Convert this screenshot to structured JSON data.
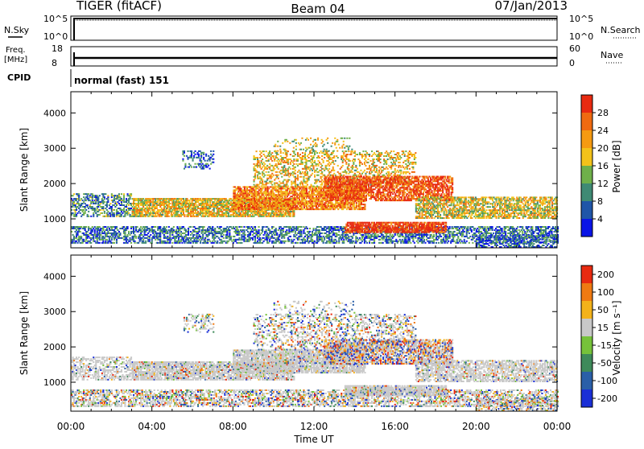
{
  "header": {
    "title": "TIGER (fitACF)",
    "beam": "Beam 04",
    "date": "07/Jan/2013"
  },
  "status_panels": {
    "nsky_label": "N.Sky",
    "nsearch_label": "N.Search",
    "freq_label_line1": "Freq.",
    "freq_label_line2": "[MHz]",
    "nave_label": "Nave",
    "cpid_label": "CPID",
    "cpid_text": "normal (fast) 151",
    "noise_ticks_left": [
      "10^5",
      "10^0"
    ],
    "noise_ticks_right": [
      "10^5",
      "10^0"
    ],
    "freq_ticks_left": [
      "18",
      "8"
    ],
    "nave_ticks_right": [
      "60",
      "0"
    ]
  },
  "chart_data": [
    {
      "type": "heatmap",
      "panel": "power",
      "ylabel": "Slant Range [km]",
      "xlabel": "Time UT",
      "x_ticks": [
        "00:00",
        "04:00",
        "08:00",
        "12:00",
        "16:00",
        "20:00",
        "00:00"
      ],
      "y_ticks": [
        1000,
        2000,
        3000,
        4000
      ],
      "ylim": [
        180,
        4600
      ],
      "xlim_hours": [
        0,
        24
      ],
      "colorbar_label": "Power [dB]",
      "colorbar_ticks": [
        "4",
        "8",
        "12",
        "16",
        "20",
        "24",
        "28"
      ],
      "colorscale": [
        "#0a14e6",
        "#1f55a8",
        "#3f8a74",
        "#6fb04a",
        "#f3c21a",
        "#f59a12",
        "#ef6a10",
        "#e82a10"
      ]
    },
    {
      "type": "heatmap",
      "panel": "velocity",
      "ylabel": "Slant Range [km]",
      "xlabel": "Time UT",
      "x_ticks": [
        "00:00",
        "04:00",
        "08:00",
        "12:00",
        "16:00",
        "20:00",
        "00:00"
      ],
      "y_ticks": [
        1000,
        2000,
        3000,
        4000
      ],
      "ylim": [
        180,
        4600
      ],
      "xlim_hours": [
        0,
        24
      ],
      "colorbar_label": "Velocity [m s⁻¹]",
      "colorbar_ticks": [
        "200",
        "100",
        "50",
        "15",
        "-15",
        "-50",
        "-100",
        "-200"
      ],
      "colorscale": [
        "#1a2fd6",
        "#2a5fa8",
        "#3e8a5a",
        "#76c23a",
        "#c8c8c8",
        "#f3b21a",
        "#ef7a12",
        "#e82a10"
      ]
    }
  ],
  "scatter_bands": [
    {
      "t0": 0.0,
      "t1": 24.0,
      "r0": 300,
      "r1": 760,
      "density": 0.55,
      "pwr": 0.25,
      "vel": "mix"
    },
    {
      "t0": 0.0,
      "t1": 3.0,
      "r0": 1050,
      "r1": 1700,
      "density": 0.5,
      "pwr": 0.3,
      "vel": "grey"
    },
    {
      "t0": 3.0,
      "t1": 11.0,
      "r0": 1050,
      "r1": 1550,
      "density": 0.8,
      "pwr": 0.6,
      "vel": "grey"
    },
    {
      "t0": 8.0,
      "t1": 14.5,
      "r0": 1250,
      "r1": 1900,
      "density": 0.8,
      "pwr": 0.75,
      "vel": "grey"
    },
    {
      "t0": 9.0,
      "t1": 17.0,
      "r0": 1900,
      "r1": 2900,
      "density": 0.35,
      "pwr": 0.6,
      "vel": "mix"
    },
    {
      "t0": 12.5,
      "t1": 18.8,
      "r0": 1500,
      "r1": 2200,
      "density": 0.7,
      "pwr": 0.9,
      "vel": "hot"
    },
    {
      "t0": 13.5,
      "t1": 18.5,
      "r0": 600,
      "r1": 900,
      "density": 0.85,
      "pwr": 0.95,
      "vel": "grey"
    },
    {
      "t0": 17.0,
      "t1": 24.0,
      "r0": 1000,
      "r1": 1600,
      "density": 0.65,
      "pwr": 0.55,
      "vel": "grey"
    },
    {
      "t0": 10.0,
      "t1": 14.0,
      "r0": 2900,
      "r1": 3300,
      "density": 0.15,
      "pwr": 0.5,
      "vel": "mix"
    },
    {
      "t0": 5.5,
      "t1": 7.0,
      "r0": 2400,
      "r1": 2900,
      "density": 0.3,
      "pwr": 0.2,
      "vel": "mix"
    },
    {
      "t0": 20.0,
      "t1": 24.0,
      "r0": 180,
      "r1": 500,
      "density": 0.5,
      "pwr": 0.2,
      "vel": "mix"
    }
  ]
}
